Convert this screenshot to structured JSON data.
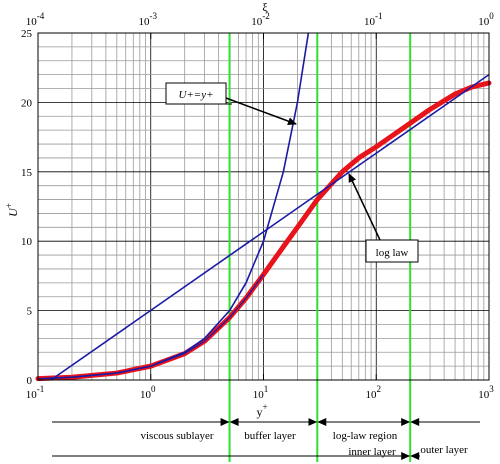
{
  "chart_data": {
    "type": "line",
    "xlabel": "y",
    "xlabel_sup": "+",
    "ylabel": "U",
    "ylabel_sup": "+",
    "top_axis_label": "ξ",
    "x_scale": "log",
    "xlim": [
      0.1,
      1000
    ],
    "ylim": [
      0,
      25
    ],
    "top_xlim": [
      0.0001,
      1
    ],
    "grid": true,
    "x_ticks": [
      {
        "base": "10",
        "exp": "-1",
        "value": 0.1
      },
      {
        "base": "10",
        "exp": "0",
        "value": 1
      },
      {
        "base": "10",
        "exp": "1",
        "value": 10
      },
      {
        "base": "10",
        "exp": "2",
        "value": 100
      },
      {
        "base": "10",
        "exp": "3",
        "value": 1000
      }
    ],
    "top_ticks": [
      {
        "base": "10",
        "exp": "-4",
        "value": 0.1
      },
      {
        "base": "10",
        "exp": "-3",
        "value": 1
      },
      {
        "base": "10",
        "exp": "-2",
        "value": 10
      },
      {
        "base": "10",
        "exp": "-1",
        "value": 100
      },
      {
        "base": "10",
        "exp": "0",
        "value": 1000
      }
    ],
    "y_ticks": [
      "0",
      "5",
      "10",
      "15",
      "20",
      "25"
    ],
    "series": [
      {
        "id": "measured",
        "color": "#e8141c",
        "x": [
          0.1,
          0.2,
          0.5,
          1,
          2,
          3,
          5,
          7,
          10,
          15,
          20,
          30,
          50,
          70,
          100,
          200,
          300,
          500,
          700,
          1000
        ],
        "y": [
          0.1,
          0.2,
          0.5,
          1.0,
          1.9,
          2.8,
          4.5,
          5.9,
          7.6,
          9.6,
          11.0,
          13.0,
          15.0,
          16.0,
          16.8,
          18.5,
          19.5,
          20.6,
          21.1,
          21.4
        ]
      },
      {
        "id": "viscous",
        "label": "U+=y+",
        "color": "#1a1aa6",
        "x": [
          0.12,
          0.2,
          0.5,
          1,
          2,
          3,
          5,
          7,
          10,
          15,
          20,
          25
        ],
        "y": [
          0.12,
          0.2,
          0.5,
          1,
          2,
          3,
          5,
          7,
          10,
          15,
          20,
          25
        ]
      },
      {
        "id": "loglaw",
        "label": "log law",
        "color": "#1a1aa6",
        "x": [
          0.13,
          1000
        ],
        "y": [
          0,
          22.0
        ]
      }
    ],
    "green_lines": [
      5,
      30,
      200
    ],
    "annotations": [
      {
        "id": "viscous-label",
        "text": "U+=y+"
      },
      {
        "id": "loglaw-label",
        "text": "log law"
      }
    ],
    "regions": [
      {
        "id": "viscous-sublayer",
        "text": "viscous sublayer",
        "from": 0.1,
        "to": 5
      },
      {
        "id": "buffer-layer",
        "text": "buffer layer",
        "from": 5,
        "to": 30
      },
      {
        "id": "log-law-region",
        "text": "log-law region",
        "from": 30,
        "to": 200
      },
      {
        "id": "inner-layer",
        "text": "inner layer",
        "from": 0.1,
        "to": 200
      },
      {
        "id": "outer-layer",
        "text": "outer layer",
        "from": 200,
        "to": 1000
      }
    ]
  }
}
